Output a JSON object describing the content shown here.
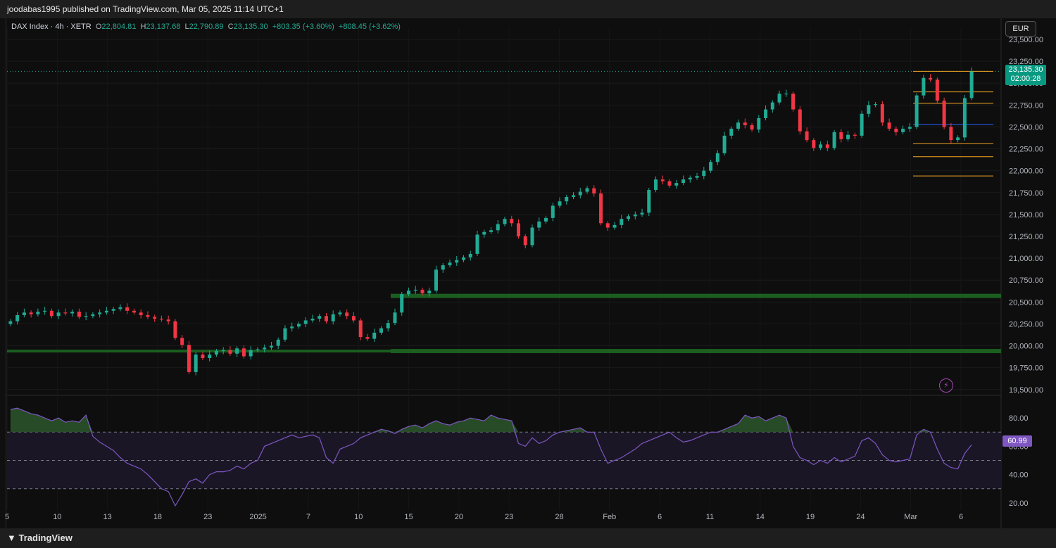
{
  "header": {
    "publisher_line": "joodabas1995 published on TradingView.com, Mar 05, 2025 11:14 UTC+1"
  },
  "legend": {
    "symbol": "DAX Index · 4h · XETR",
    "open_label": "O",
    "open": "22,804.81",
    "high_label": "H",
    "high": "23,137.68",
    "low_label": "L",
    "low": "22,790.89",
    "close_label": "C",
    "close": "23,135.30",
    "change": "+803.35 (+3.60%)",
    "change2": "+808.45 (+3.62%)"
  },
  "currency_button": "EUR",
  "last_price": {
    "price": "23,135.30",
    "countdown": "02:00:28"
  },
  "rsi_value_label": "60.99",
  "footer": {
    "brand": "TradingView"
  },
  "colors": {
    "up": "#22ab94",
    "down": "#f23645",
    "support": "#1b5e20",
    "rsi": "#7e57c2",
    "fib_orange": "#f5a623",
    "fib_blue": "#2962ff"
  },
  "chart_data": [
    {
      "type": "candlestick",
      "title": "DAX Index · 4h · XETR",
      "y_axis_ticks": [
        "19,500.00",
        "19,750.00",
        "20,000.00",
        "20,250.00",
        "20,500.00",
        "20,750.00",
        "21,000.00",
        "21,250.00",
        "21,500.00",
        "21,750.00",
        "22,000.00",
        "22,250.00",
        "22,500.00",
        "22,750.00",
        "23,000.00",
        "23,250.00",
        "23,500.00"
      ],
      "ylim": [
        19450,
        23500
      ],
      "x_axis_ticks": [
        "5",
        "10",
        "13",
        "18",
        "23",
        "2025",
        "7",
        "10",
        "15",
        "20",
        "23",
        "28",
        "Feb",
        "6",
        "11",
        "14",
        "19",
        "24",
        "Mar",
        "6"
      ],
      "closes": [
        20280,
        20350,
        20380,
        20360,
        20390,
        20400,
        20340,
        20380,
        20370,
        20390,
        20330,
        20340,
        20360,
        20380,
        20400,
        20420,
        20440,
        20400,
        20380,
        20350,
        20330,
        20310,
        20300,
        20280,
        20090,
        20010,
        19700,
        19900,
        19860,
        19900,
        19940,
        19950,
        19910,
        19970,
        19880,
        19950,
        19960,
        19980,
        20000,
        20070,
        20200,
        20220,
        20250,
        20290,
        20310,
        20340,
        20280,
        20360,
        20380,
        20340,
        20290,
        20100,
        20080,
        20150,
        20200,
        20260,
        20380,
        20590,
        20630,
        20640,
        20600,
        20630,
        20870,
        20920,
        20950,
        20980,
        21010,
        21050,
        21270,
        21300,
        21320,
        21390,
        21450,
        21400,
        21250,
        21150,
        21350,
        21420,
        21460,
        21600,
        21650,
        21700,
        21720,
        21760,
        21800,
        21740,
        21400,
        21350,
        21380,
        21450,
        21480,
        21500,
        21520,
        21780,
        21900,
        21880,
        21830,
        21860,
        21900,
        21920,
        21940,
        22000,
        22100,
        22200,
        22400,
        22480,
        22550,
        22520,
        22470,
        22600,
        22700,
        22780,
        22880,
        22880,
        22700,
        22450,
        22350,
        22260,
        22300,
        22260,
        22440,
        22360,
        22410,
        22400,
        22650,
        22750,
        22760,
        22550,
        22480,
        22440,
        22480,
        22500,
        22860,
        23060,
        23040,
        22800,
        22500,
        22350,
        22380,
        22830,
        23135
      ],
      "support_zones": [
        20570,
        19940
      ],
      "horizontal_levels": [
        {
          "value": 23135,
          "color": "orange"
        },
        {
          "value": 22900,
          "color": "orange"
        },
        {
          "value": 22770,
          "color": "orange"
        },
        {
          "value": 22530,
          "color": "blue"
        },
        {
          "value": 22310,
          "color": "orange"
        },
        {
          "value": 22160,
          "color": "orange"
        },
        {
          "value": 21940,
          "color": "orange"
        }
      ]
    },
    {
      "type": "line",
      "series": [
        {
          "name": "",
          "values": [
            86,
            87,
            85,
            83,
            82,
            80,
            78,
            80,
            77,
            78,
            77,
            82,
            67,
            63,
            60,
            57,
            52,
            48,
            46,
            44,
            40,
            35,
            30,
            28,
            18,
            26,
            35,
            37,
            34,
            40,
            42,
            42,
            43,
            46,
            44,
            48,
            50,
            60,
            62,
            64,
            66,
            68,
            66,
            67,
            68,
            66,
            52,
            48,
            58,
            60,
            62,
            66,
            68,
            70,
            72,
            71,
            69,
            72,
            74,
            75,
            73,
            76,
            78,
            76,
            75,
            77,
            78,
            80,
            79,
            78,
            82,
            80,
            79,
            78,
            62,
            60,
            66,
            62,
            64,
            68,
            70,
            71,
            72,
            73,
            70,
            70,
            58,
            48,
            50,
            52,
            55,
            58,
            62,
            64,
            66,
            68,
            70,
            66,
            63,
            64,
            66,
            68,
            70,
            70,
            72,
            74,
            76,
            82,
            80,
            81,
            78,
            80,
            82,
            80,
            60,
            52,
            50,
            47,
            50,
            48,
            52,
            49,
            51,
            53,
            64,
            66,
            62,
            54,
            50,
            49,
            50,
            51,
            68,
            72,
            70,
            58,
            48,
            45,
            44,
            55,
            61
          ]
        }
      ],
      "y_axis_ticks": [
        "20.00",
        "40.00",
        "60.00",
        "80.00"
      ],
      "ylim": [
        15,
        92
      ],
      "bands": [
        30,
        50,
        70
      ]
    }
  ]
}
